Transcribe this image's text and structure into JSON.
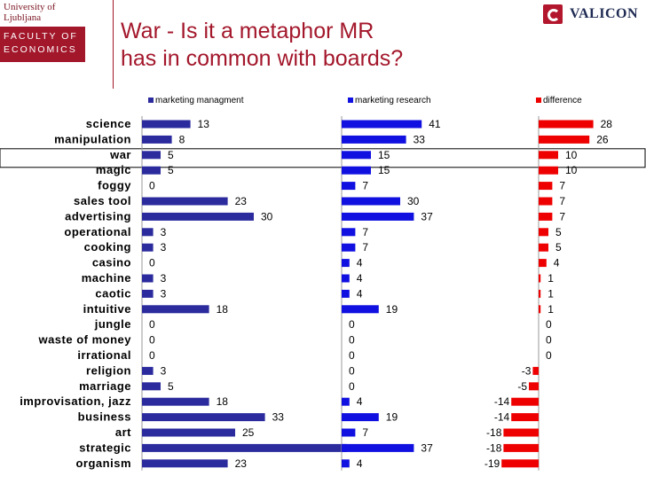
{
  "header": {
    "university": "University of Ljubljana",
    "faculty_lines": [
      "FACULTY OF",
      "ECONOMICS"
    ],
    "brand": "VALICON"
  },
  "title_lines": [
    "War - Is it a metaphor MR",
    "has in common with boards?"
  ],
  "chart_data": {
    "type": "bar",
    "orientation": "horizontal",
    "layout": "three side-by-side panels sharing one category axis",
    "categories": [
      "science",
      "manipulation",
      "war",
      "magic",
      "foggy",
      "sales tool",
      "advertising",
      "operational",
      "cooking",
      "casino",
      "machine",
      "caotic",
      "intuitive",
      "jungle",
      "waste of money",
      "irrational",
      "religion",
      "marriage",
      "improvisation, jazz",
      "business",
      "art",
      "strategic",
      "organism"
    ],
    "highlighted_category": "war",
    "series": [
      {
        "name": "marketing managment",
        "color": "#2b2b9e",
        "values": [
          13,
          8,
          5,
          5,
          0,
          23,
          30,
          3,
          3,
          0,
          3,
          3,
          18,
          0,
          0,
          0,
          3,
          5,
          18,
          33,
          25,
          55,
          23
        ]
      },
      {
        "name": "marketing research",
        "color": "#1010e0",
        "values": [
          41,
          33,
          15,
          15,
          7,
          30,
          37,
          7,
          7,
          4,
          4,
          4,
          19,
          0,
          0,
          0,
          0,
          0,
          4,
          19,
          7,
          37,
          4
        ]
      },
      {
        "name": "difference",
        "color": "#ee0000",
        "values": [
          28,
          26,
          10,
          10,
          7,
          7,
          7,
          5,
          5,
          4,
          1,
          1,
          1,
          0,
          0,
          0,
          -3,
          -5,
          -14,
          -14,
          -18,
          -18,
          -19
        ]
      }
    ],
    "legend_position": "top",
    "grid": false
  }
}
